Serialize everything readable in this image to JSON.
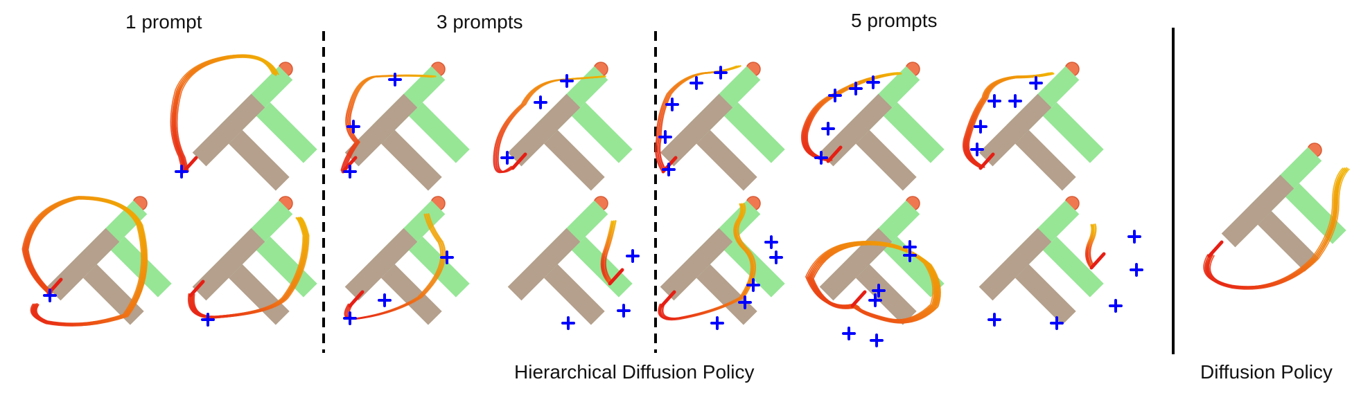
{
  "headings": {
    "one": "1 prompt",
    "three": "3 prompts",
    "five": "5 prompts"
  },
  "captions": {
    "hierarchical": "Hierarchical Diffusion Policy",
    "baseline": "Diffusion Policy"
  },
  "colors": {
    "block": "#b4a08c",
    "goal": "#96e696",
    "target": "#f07850",
    "prompt": "#0000ff",
    "trajectory_start": "#f0b400",
    "trajectory_mid": "#f07014",
    "trajectory_end": "#e61e14",
    "divider": "#000000"
  }
}
